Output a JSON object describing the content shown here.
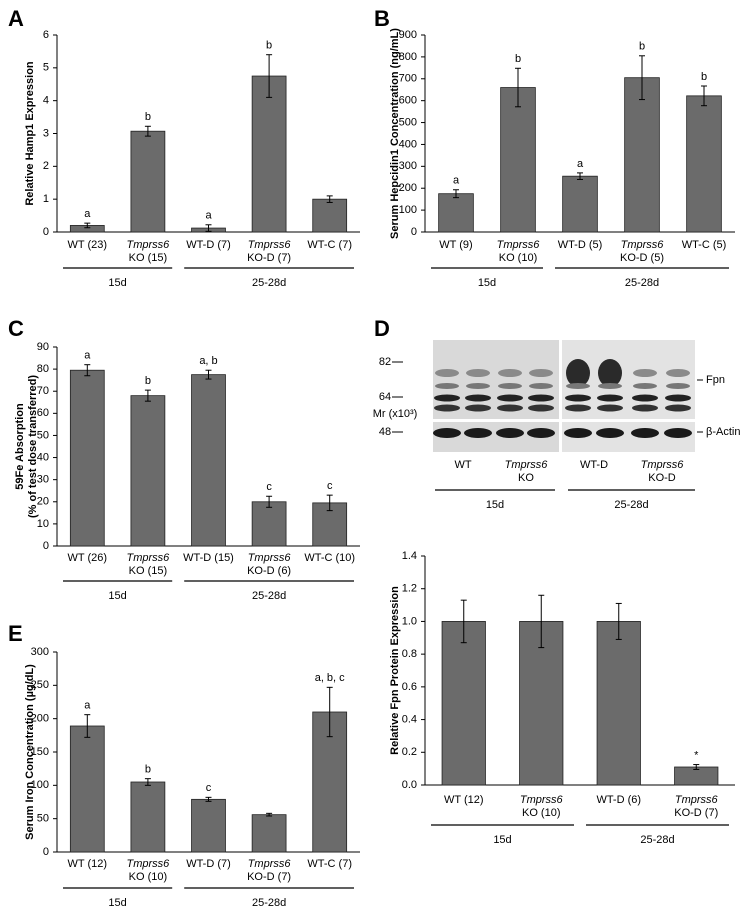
{
  "chart_data": [
    {
      "type": "bar",
      "panel": "A",
      "y_label": "Relative Hamp1 Expression",
      "categories": [
        [
          "WT (23)"
        ],
        [
          "Tmprss6",
          "KO (15)"
        ],
        [
          "WT-D (7)"
        ],
        [
          "Tmprss6",
          "KO-D (7)"
        ],
        [
          "WT-C (7)"
        ]
      ],
      "values": [
        0.2,
        3.07,
        0.12,
        4.75,
        1.0
      ],
      "errors": [
        0.07,
        0.15,
        0.1,
        0.65,
        0.1
      ],
      "letters": [
        "a",
        "b",
        "a",
        "b",
        null
      ],
      "groups": [
        "15d",
        "25-28d"
      ],
      "color": "#6b6b6b",
      "ylim": [
        0,
        6
      ],
      "yticks": [
        0,
        1,
        2,
        3,
        4,
        5,
        6
      ]
    },
    {
      "type": "bar",
      "panel": "B",
      "y_label": "Serum Hepcidin1 Concentration (ng/mL)",
      "categories": [
        [
          "WT (9)"
        ],
        [
          "Tmprss6",
          "KO (10)"
        ],
        [
          "WT-D (5)"
        ],
        [
          "Tmprss6",
          "KO-D (5)"
        ],
        [
          "WT-C (5)"
        ]
      ],
      "values": [
        175,
        660,
        255,
        705,
        622
      ],
      "errors": [
        18,
        88,
        15,
        100,
        45
      ],
      "letters": [
        "a",
        "b",
        "a",
        "b",
        "b"
      ],
      "groups": [
        "15d",
        "25-28d"
      ],
      "color": "#6b6b6b",
      "ylim": [
        0,
        900
      ],
      "yticks": [
        0,
        100,
        200,
        300,
        400,
        500,
        600,
        700,
        800,
        900
      ]
    },
    {
      "type": "bar",
      "panel": "C",
      "y_label": [
        "59Fe Absorption",
        "(% of test dose transferred)"
      ],
      "categories": [
        [
          "WT (26)"
        ],
        [
          "Tmprss6",
          "KO (15)"
        ],
        [
          "WT-D (15)"
        ],
        [
          "Tmprss6",
          "KO-D (6)"
        ],
        [
          "WT-C (10)"
        ]
      ],
      "values": [
        79.5,
        68,
        77.5,
        20,
        19.5
      ],
      "errors": [
        2.5,
        2.5,
        2,
        2.5,
        3.5
      ],
      "letters": [
        "a",
        "b",
        "a, b",
        "c",
        "c"
      ],
      "groups": [
        "15d",
        "25-28d"
      ],
      "color": "#6b6b6b",
      "ylim": [
        0,
        90
      ],
      "yticks": [
        0,
        10,
        20,
        30,
        40,
        50,
        60,
        70,
        80,
        90
      ]
    },
    {
      "type": "bar",
      "y_label": "Relative Fpn Protein Expression",
      "categories": [
        [
          "WT (12)"
        ],
        [
          "Tmprss6",
          "KO (10)"
        ],
        [
          "WT-D (6)"
        ],
        [
          "Tmprss6",
          "KO-D (7)"
        ]
      ],
      "values": [
        1.0,
        1.0,
        1.0,
        0.11
      ],
      "errors": [
        0.13,
        0.16,
        0.11,
        0.015
      ],
      "letters": [
        null,
        null,
        null,
        "*"
      ],
      "groups": [
        "15d",
        "25-28d"
      ],
      "color": "#6b6b6b",
      "ylim": [
        0,
        1.4
      ],
      "yticks": [
        {
          "value": 0,
          "label": "0.0"
        },
        0.2,
        0.4,
        0.6,
        0.8,
        {
          "value": 1,
          "label": "1.0"
        },
        1.2,
        1.4
      ]
    },
    {
      "type": "bar",
      "panel": "E",
      "y_label": "Serum Iron Concentration (µg/dL)",
      "categories": [
        [
          "WT (12)"
        ],
        [
          "Tmprss6",
          "KO (10)"
        ],
        [
          "WT-D (7)"
        ],
        [
          "Tmprss6",
          "KO-D (7)"
        ],
        [
          "WT-C (7)"
        ]
      ],
      "values": [
        189,
        105,
        79,
        56,
        210
      ],
      "errors": [
        17,
        5,
        3,
        2,
        37
      ],
      "letters": [
        "a",
        "b",
        "c",
        null,
        "a, b, c"
      ],
      "groups": [
        "15d",
        "25-28d"
      ],
      "color": "#6b6b6b",
      "ylim": [
        0,
        300
      ],
      "yticks": [
        0,
        50,
        100,
        150,
        200,
        250,
        300
      ]
    }
  ],
  "blot": {
    "panel": "D",
    "markers": [
      82,
      64,
      48
    ],
    "mass_label": "Mr (x10³)",
    "bands": [
      "Fpn",
      "β-Actin"
    ],
    "lanes": [
      [
        "WT"
      ],
      [
        "Tmprss6",
        "KO"
      ],
      [
        "WT-D"
      ],
      [
        "Tmprss6",
        "KO-D"
      ]
    ],
    "groups": [
      "15d",
      "25-28d"
    ]
  }
}
